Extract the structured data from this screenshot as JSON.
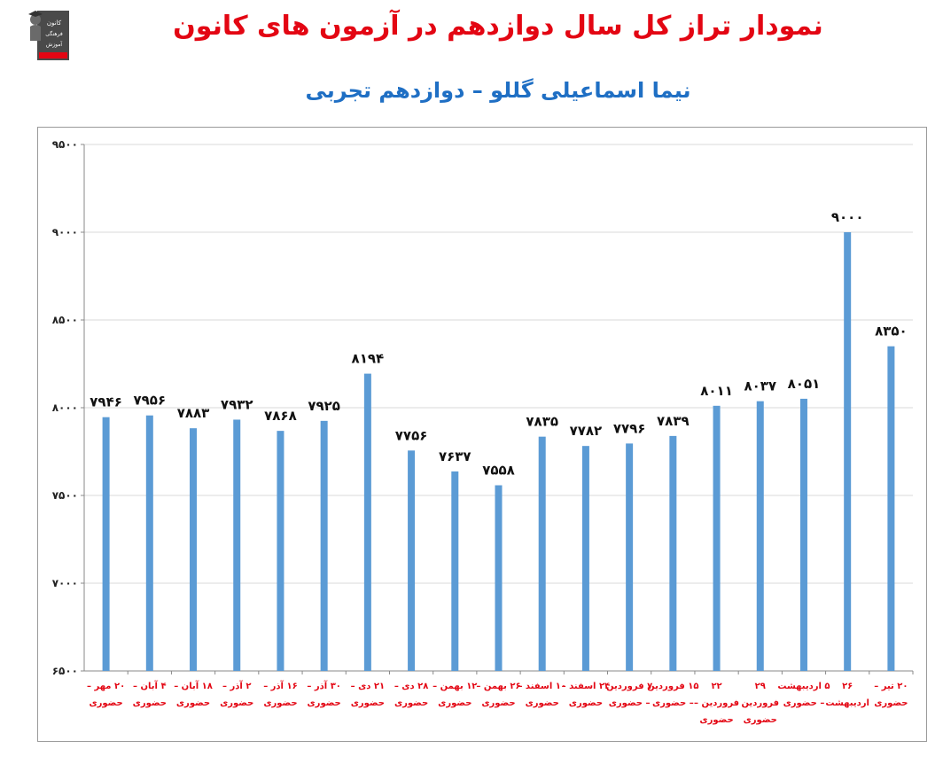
{
  "title": "نمودار تراز کل سال دوازدهم در آزمون های کانون",
  "subtitle": "نیما اسماعیلی گللو – دوازدهم تجربی",
  "logo": {
    "text_lines": [
      "کانون",
      "فرهنگی",
      "آموزش"
    ],
    "colors": {
      "body": "#555555",
      "badge": "#e30613"
    }
  },
  "colors": {
    "title": "#e30613",
    "subtitle": "#1f6fc4",
    "bar": "#5b9bd5",
    "grid": "#d9d9d9",
    "x_label": "#e30613",
    "value_label": "#111111"
  },
  "chart_data": {
    "type": "bar",
    "ylim": [
      6500,
      9500
    ],
    "yticks": [
      6500,
      7000,
      7500,
      8000,
      8500,
      9000,
      9500
    ],
    "ytick_labels": [
      "۶۵۰۰",
      "۷۰۰۰",
      "۷۵۰۰",
      "۸۰۰۰",
      "۸۵۰۰",
      "۹۰۰۰",
      "۹۵۰۰"
    ],
    "grid": true,
    "legend": "none",
    "categories": [
      [
        "۲۰ مهر –",
        "حضوری"
      ],
      [
        "۴ آبان –",
        "حضوری"
      ],
      [
        "۱۸ آبان –",
        "حضوری"
      ],
      [
        "۲ آذر –",
        "حضوری"
      ],
      [
        "۱۶ آذر –",
        "حضوری"
      ],
      [
        "۳۰ آذر –",
        "حضوری"
      ],
      [
        "۲۱ دی –",
        "حضوری"
      ],
      [
        "۲۸ دی –",
        "حضوری"
      ],
      [
        "۱۲ بهمن –",
        "حضوری"
      ],
      [
        "۲۶ بهمن –",
        "حضوری"
      ],
      [
        "۱۰ اسفند –",
        "حضوری"
      ],
      [
        "۲۴ اسفند –",
        "حضوری"
      ],
      [
        "۷ فروردین",
        "– حضوری"
      ],
      [
        "۱۵ فروردین",
        "– حضوری"
      ],
      [
        "۲۲",
        "فروردین –",
        "حضوری"
      ],
      [
        "۲۹",
        "فروردین",
        "حضوری"
      ],
      [
        "۵ اردیبهشت",
        "– حضوری"
      ],
      [
        "۲۶",
        "اردیبهشت"
      ],
      [
        "۲۰ تیر –",
        "حضوری"
      ]
    ],
    "values": [
      7946,
      7956,
      7883,
      7932,
      7868,
      7925,
      8194,
      7756,
      7637,
      7558,
      7835,
      7782,
      7796,
      7839,
      8011,
      8037,
      8051,
      9000,
      8350
    ],
    "value_labels": [
      "۷۹۴۶",
      "۷۹۵۶",
      "۷۸۸۳",
      "۷۹۳۲",
      "۷۸۶۸",
      "۷۹۲۵",
      "۸۱۹۴",
      "۷۷۵۶",
      "۷۶۳۷",
      "۷۵۵۸",
      "۷۸۳۵",
      "۷۷۸۲",
      "۷۷۹۶",
      "۷۸۳۹",
      "۸۰۱۱",
      "۸۰۳۷",
      "۸۰۵۱",
      "۹۰۰۰",
      "۸۳۵۰"
    ]
  }
}
